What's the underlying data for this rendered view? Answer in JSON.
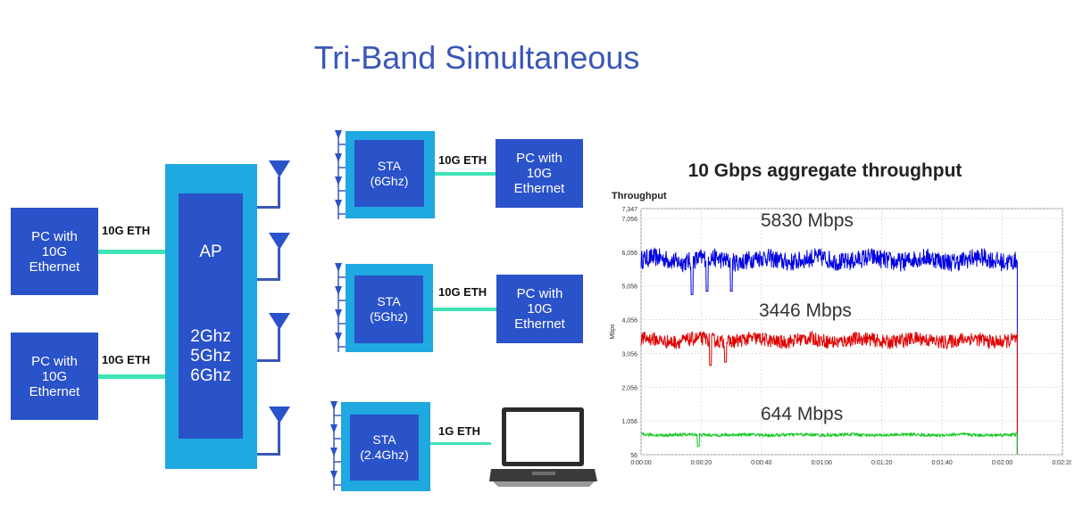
{
  "title": "Tri-Band Simultaneous",
  "pc_boxes": {
    "left_top": "PC with\n10G\nEthernet",
    "left_bottom": "PC with\n10G\nEthernet",
    "right_1": "PC with\n10G\nEthernet",
    "right_2": "PC with\n10G\nEthernet"
  },
  "links": {
    "ap_top": "10G ETH",
    "ap_bottom": "10G ETH",
    "sta_6g": "10G ETH",
    "sta_5g": "10G ETH",
    "sta_24g": "1G ETH"
  },
  "ap": {
    "label": "AP",
    "bands": "2Ghz\n5Ghz\n6Ghz"
  },
  "stations": [
    {
      "label": "STA\n(6Ghz)"
    },
    {
      "label": "STA\n(5Ghz)"
    },
    {
      "label": "STA\n(2.4Ghz)"
    }
  ],
  "laptop_icon": "laptop-icon",
  "chart_heading": "10 Gbps aggregate throughput",
  "annotations": {
    "blue": "5830 Mbps",
    "red": "3446 Mbps",
    "green": "644 Mbps"
  },
  "chart_data": {
    "type": "line",
    "title": "Throughput",
    "ylabel": "Mbps",
    "xlabel": "",
    "ylim": [
      56,
      7347
    ],
    "y_ticks": [
      "7,347",
      "7,056",
      "6,056",
      "5,056",
      "4,056",
      "3,056",
      "2,056",
      "1,056",
      "56"
    ],
    "y_tick_values": [
      7347,
      7056,
      6056,
      5056,
      4056,
      3056,
      2056,
      1056,
      56
    ],
    "x_ticks": [
      "0:00:00",
      "0:00:20",
      "0:00:40",
      "0:01:00",
      "0:01:20",
      "0:01:40",
      "0:02:00",
      "0:02:20"
    ],
    "x_tick_values": [
      0,
      20,
      40,
      60,
      80,
      100,
      120,
      140
    ],
    "x_end": 125,
    "grid": true,
    "series": [
      {
        "color": "#0000e0",
        "mean": 5830,
        "noise": 280,
        "dips": [
          [
            17,
            4800
          ],
          [
            22,
            4900
          ],
          [
            30,
            4900
          ]
        ]
      },
      {
        "color": "#e00000",
        "mean": 3446,
        "noise": 210,
        "dips": [
          [
            23,
            2700
          ],
          [
            28,
            2800
          ]
        ]
      },
      {
        "color": "#10c820",
        "mean": 644,
        "noise": 45,
        "dips": [
          [
            19,
            300
          ]
        ]
      }
    ]
  }
}
